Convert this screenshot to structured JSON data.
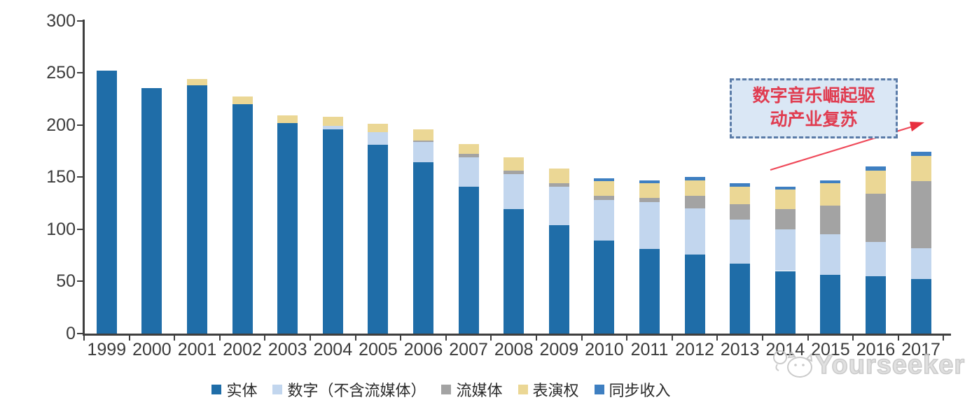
{
  "chart_data": {
    "type": "bar",
    "stacked": true,
    "title": "",
    "xlabel": "",
    "ylabel": "",
    "categories": [
      "1999",
      "2000",
      "2001",
      "2002",
      "2003",
      "2004",
      "2005",
      "2006",
      "2007",
      "2008",
      "2009",
      "2010",
      "2011",
      "2012",
      "2013",
      "2014",
      "2015",
      "2016",
      "2017"
    ],
    "series": [
      {
        "key": "physical",
        "name": "实体",
        "color": "#1F6DA8",
        "values": [
          252,
          235,
          238,
          220,
          202,
          196,
          181,
          164,
          141,
          119,
          104,
          89,
          81,
          76,
          67,
          60,
          56,
          55,
          52
        ]
      },
      {
        "key": "digital_ex_streaming",
        "name": "数字（不含流媒体）",
        "color": "#C2D6EE",
        "values": [
          0,
          0,
          0,
          0,
          0,
          3,
          12,
          20,
          28,
          34,
          37,
          39,
          45,
          44,
          42,
          40,
          39,
          33,
          30
        ]
      },
      {
        "key": "streaming",
        "name": "流媒体",
        "color": "#A3A3A3",
        "values": [
          0,
          0,
          0,
          0,
          0,
          0,
          0,
          1,
          3,
          3,
          3,
          4,
          4,
          12,
          15,
          19,
          28,
          46,
          64
        ]
      },
      {
        "key": "performance_rights",
        "name": "表演权",
        "color": "#EBD795",
        "values": [
          0,
          0,
          6,
          7,
          7,
          9,
          8,
          11,
          10,
          13,
          14,
          14,
          14,
          15,
          17,
          19,
          21,
          22,
          24
        ]
      },
      {
        "key": "sync",
        "name": "同步收入",
        "color": "#3E7FC1",
        "values": [
          0,
          0,
          0,
          0,
          0,
          0,
          0,
          0,
          0,
          0,
          0,
          3,
          3,
          3,
          3,
          3,
          3,
          4,
          4
        ]
      }
    ],
    "ylim": [
      0,
      300
    ],
    "yticks": [
      0,
      50,
      100,
      150,
      200,
      250,
      300
    ],
    "grid": false,
    "legend_position": "bottom"
  },
  "annotation": {
    "line1": "数字音乐崛起驱",
    "line2": "动产业复苏",
    "text_color": "#E03C50",
    "box_fill": "#DAE7F5",
    "box_border": "#5B7CA8",
    "arrow_color": "#EF4A5A"
  },
  "watermark": {
    "text": "Yourseeker",
    "logo": "cat-logo-icon",
    "color": "#C3C3C3"
  }
}
